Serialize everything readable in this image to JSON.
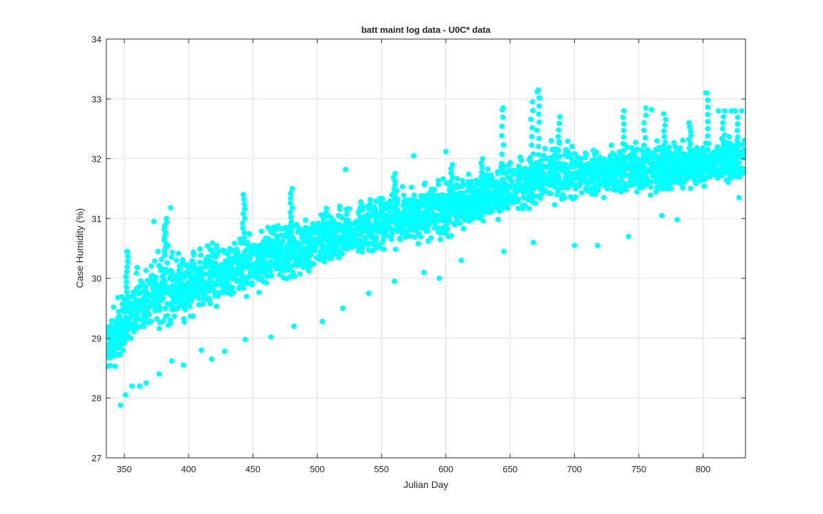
{
  "chart_data": {
    "type": "scatter",
    "title": "batt maint log data - U0C* data",
    "xlabel": "Julian Day",
    "ylabel": "Case Humidity (%)",
    "xlim": [
      336,
      833
    ],
    "ylim": [
      27,
      34
    ],
    "xticks": [
      350,
      400,
      450,
      500,
      550,
      600,
      650,
      700,
      750,
      800
    ],
    "yticks": [
      27,
      28,
      29,
      30,
      31,
      32,
      33,
      34
    ],
    "grid": true,
    "marker_color": "#00ffff",
    "trend": {
      "x": [
        336,
        345,
        360,
        380,
        400,
        450,
        500,
        550,
        600,
        650,
        680,
        700,
        750,
        800,
        833
      ],
      "center": [
        28.9,
        29.1,
        29.45,
        29.75,
        29.85,
        30.25,
        30.6,
        30.95,
        31.15,
        31.45,
        31.7,
        31.75,
        31.85,
        31.9,
        32.0
      ],
      "upper": [
        29.4,
        29.7,
        30.3,
        30.8,
        30.7,
        30.95,
        31.2,
        31.55,
        31.75,
        32.1,
        32.6,
        32.3,
        32.4,
        32.4,
        32.5
      ],
      "lower": [
        28.2,
        28.5,
        28.8,
        29.0,
        29.15,
        29.6,
        30.0,
        30.3,
        30.6,
        31.0,
        31.2,
        31.2,
        31.3,
        31.4,
        31.5
      ]
    },
    "outliers": [
      [
        347,
        27.88
      ],
      [
        351,
        28.05
      ],
      [
        356,
        28.2
      ],
      [
        362,
        28.2
      ],
      [
        367,
        28.25
      ],
      [
        377,
        28.4
      ],
      [
        387,
        28.62
      ],
      [
        396,
        28.55
      ],
      [
        410,
        28.8
      ],
      [
        418,
        28.65
      ],
      [
        428,
        28.78
      ],
      [
        444,
        28.98
      ],
      [
        464,
        29.02
      ],
      [
        482,
        29.2
      ],
      [
        504,
        29.28
      ],
      [
        520,
        29.5
      ],
      [
        540,
        29.75
      ],
      [
        560,
        29.95
      ],
      [
        583,
        30.1
      ],
      [
        595,
        30.0
      ],
      [
        612,
        30.3
      ],
      [
        645,
        30.45
      ],
      [
        668,
        30.6
      ],
      [
        700,
        30.55
      ],
      [
        718,
        30.55
      ],
      [
        742,
        30.7
      ],
      [
        768,
        31.05
      ],
      [
        780,
        30.98
      ],
      [
        828,
        31.35
      ],
      [
        386,
        31.18
      ],
      [
        522,
        31.82
      ],
      [
        575,
        32.05
      ],
      [
        600,
        32.12
      ],
      [
        644,
        32.82
      ],
      [
        671,
        33.12
      ],
      [
        673,
        33.02
      ],
      [
        803,
        33.1
      ],
      [
        760,
        32.82
      ],
      [
        812,
        32.8
      ],
      [
        830,
        32.8
      ],
      [
        822,
        32.8
      ],
      [
        345,
        29.68
      ],
      [
        352,
        30.45
      ],
      [
        373,
        30.95
      ]
    ],
    "spikes": [
      [
        352,
        29.6,
        30.45
      ],
      [
        382,
        30.4,
        31.0
      ],
      [
        443,
        30.6,
        31.4
      ],
      [
        480,
        30.7,
        31.5
      ],
      [
        560,
        31.1,
        31.75
      ],
      [
        605,
        31.2,
        31.9
      ],
      [
        628,
        31.25,
        32.0
      ],
      [
        644,
        31.3,
        32.85
      ],
      [
        667,
        31.5,
        32.95
      ],
      [
        672,
        31.8,
        33.15
      ],
      [
        688,
        31.6,
        32.7
      ],
      [
        738,
        31.7,
        32.8
      ],
      [
        755,
        31.6,
        32.85
      ],
      [
        770,
        31.8,
        32.75
      ],
      [
        790,
        31.9,
        32.6
      ],
      [
        803,
        31.9,
        33.1
      ],
      [
        816,
        31.8,
        32.8
      ],
      [
        826,
        31.7,
        32.8
      ]
    ]
  }
}
